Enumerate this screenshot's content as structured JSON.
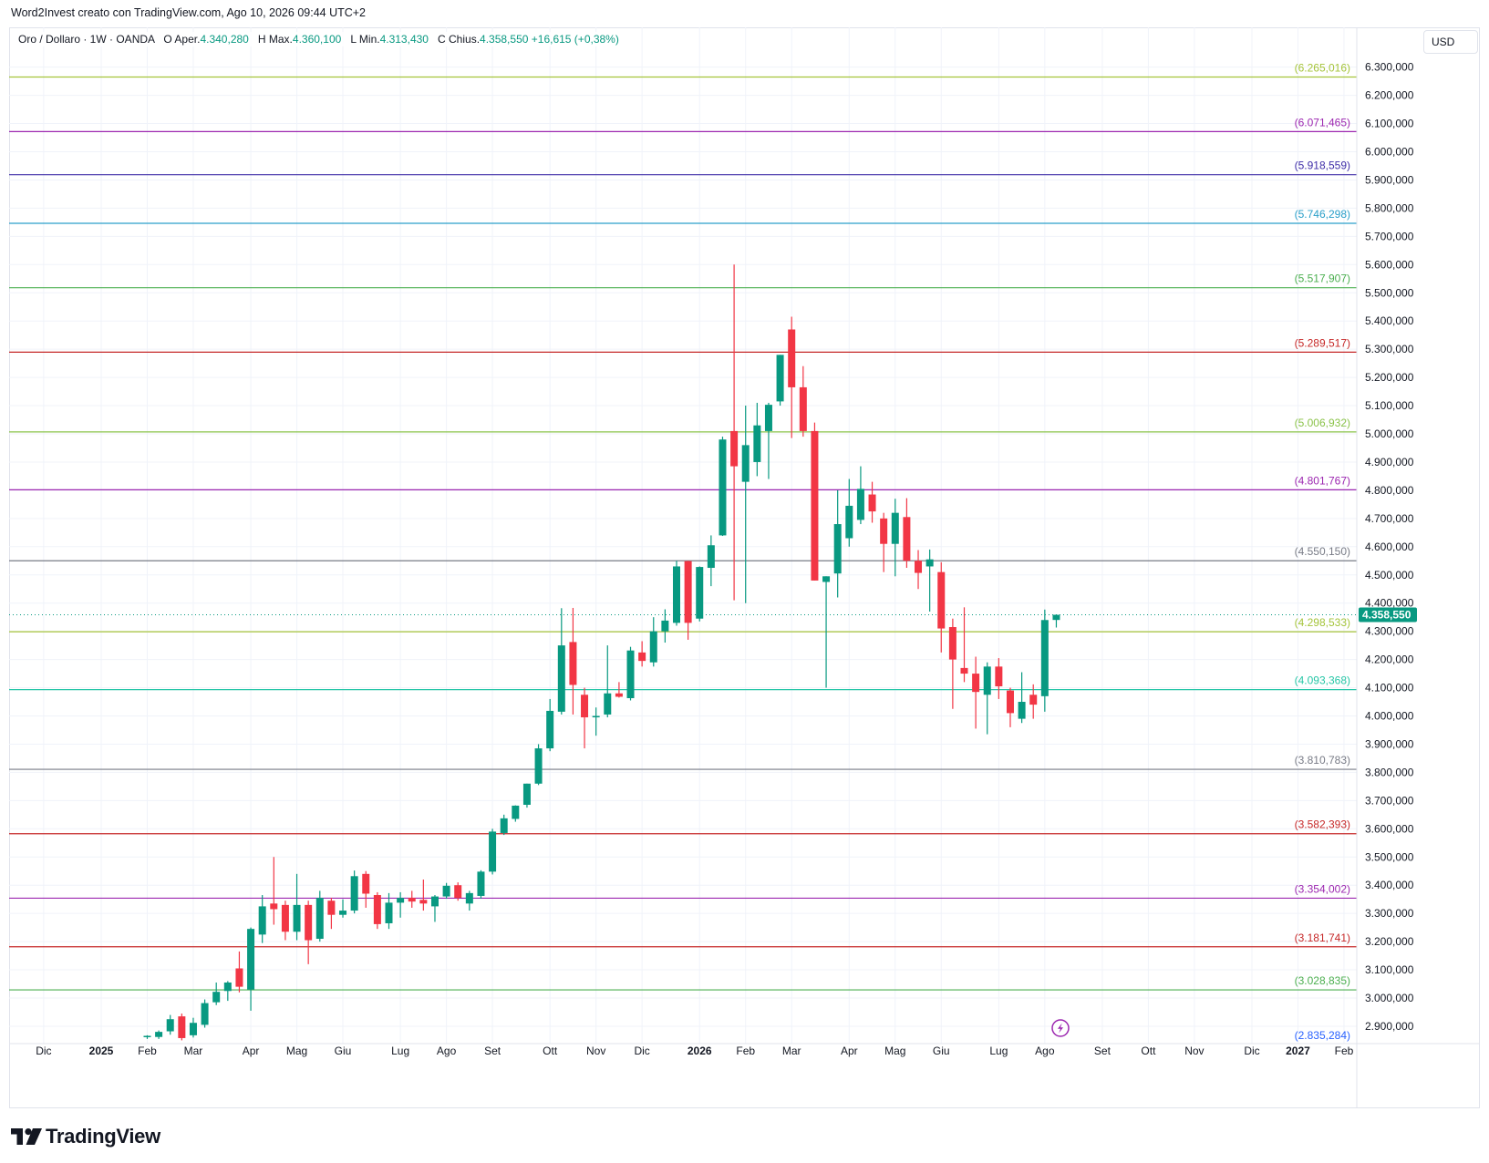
{
  "header": {
    "credit": "Word2Invest creato con TradingView.com, Ago 10, 2026 09:44 UTC+2"
  },
  "legend": {
    "symbol": "Oro / Dollaro · 1W · OANDA",
    "open_label": "O",
    "open_text": "Aper.",
    "open_value": "4.340,280",
    "high_label": "H",
    "high_text": "Max.",
    "high_value": "4.360,100",
    "low_label": "L",
    "low_text": "Min.",
    "low_value": "4.313,430",
    "close_label": "C",
    "close_text": "Chius.",
    "close_value": "4.358,550",
    "change": "+16,615 (+0,38%)"
  },
  "currency_button": {
    "label": "USD"
  },
  "price_badge": {
    "value": "4.358,550",
    "color": "#089981"
  },
  "footer": {
    "brand": "TradingView"
  },
  "colors": {
    "up": "#089981",
    "down": "#f23645",
    "grid": "#f0f3fa",
    "axis_text": "#131722"
  },
  "chart_data": {
    "type": "candlestick",
    "title": "Oro / Dollaro · 1W · OANDA",
    "ylim": [
      2850,
      6330
    ],
    "y_ticks": [
      {
        "value": 2900,
        "label": "2.900,000"
      },
      {
        "value": 3000,
        "label": "3.000,000"
      },
      {
        "value": 3100,
        "label": "3.100,000"
      },
      {
        "value": 3200,
        "label": "3.200,000"
      },
      {
        "value": 3300,
        "label": "3.300,000"
      },
      {
        "value": 3400,
        "label": "3.400,000"
      },
      {
        "value": 3500,
        "label": "3.500,000"
      },
      {
        "value": 3600,
        "label": "3.600,000"
      },
      {
        "value": 3700,
        "label": "3.700,000"
      },
      {
        "value": 3800,
        "label": "3.800,000"
      },
      {
        "value": 3900,
        "label": "3.900,000"
      },
      {
        "value": 4000,
        "label": "4.000,000"
      },
      {
        "value": 4100,
        "label": "4.100,000"
      },
      {
        "value": 4200,
        "label": "4.200,000"
      },
      {
        "value": 4300,
        "label": "4.300,000"
      },
      {
        "value": 4400,
        "label": "4.400,000"
      },
      {
        "value": 4500,
        "label": "4.500,000"
      },
      {
        "value": 4600,
        "label": "4.600,000"
      },
      {
        "value": 4700,
        "label": "4.700,000"
      },
      {
        "value": 4800,
        "label": "4.800,000"
      },
      {
        "value": 4900,
        "label": "4.900,000"
      },
      {
        "value": 5000,
        "label": "5.000,000"
      },
      {
        "value": 5100,
        "label": "5.100,000"
      },
      {
        "value": 5200,
        "label": "5.200,000"
      },
      {
        "value": 5300,
        "label": "5.300,000"
      },
      {
        "value": 5400,
        "label": "5.400,000"
      },
      {
        "value": 5500,
        "label": "5.500,000"
      },
      {
        "value": 5600,
        "label": "5.600,000"
      },
      {
        "value": 5700,
        "label": "5.700,000"
      },
      {
        "value": 5800,
        "label": "5.800,000"
      },
      {
        "value": 5900,
        "label": "5.900,000"
      },
      {
        "value": 6000,
        "label": "6.000,000"
      },
      {
        "value": 6100,
        "label": "6.100,000"
      },
      {
        "value": 6200,
        "label": "6.200,000"
      },
      {
        "value": 6300,
        "label": "6.300,000"
      }
    ],
    "x_ticks": [
      {
        "label": "Dic",
        "week": -5,
        "bold": false
      },
      {
        "label": "2025",
        "week": 0,
        "bold": true
      },
      {
        "label": "Feb",
        "week": 4,
        "bold": false
      },
      {
        "label": "Mar",
        "week": 8,
        "bold": false
      },
      {
        "label": "Apr",
        "week": 13,
        "bold": false
      },
      {
        "label": "Mag",
        "week": 17,
        "bold": false
      },
      {
        "label": "Giu",
        "week": 21,
        "bold": false
      },
      {
        "label": "Lug",
        "week": 26,
        "bold": false
      },
      {
        "label": "Ago",
        "week": 30,
        "bold": false
      },
      {
        "label": "Set",
        "week": 34,
        "bold": false
      },
      {
        "label": "Ott",
        "week": 39,
        "bold": false
      },
      {
        "label": "Nov",
        "week": 43,
        "bold": false
      },
      {
        "label": "Dic",
        "week": 47,
        "bold": false
      },
      {
        "label": "2026",
        "week": 52,
        "bold": true
      },
      {
        "label": "Feb",
        "week": 56,
        "bold": false
      },
      {
        "label": "Mar",
        "week": 60,
        "bold": false
      },
      {
        "label": "Apr",
        "week": 65,
        "bold": false
      },
      {
        "label": "Mag",
        "week": 69,
        "bold": false
      },
      {
        "label": "Giu",
        "week": 73,
        "bold": false
      },
      {
        "label": "Lug",
        "week": 78,
        "bold": false
      },
      {
        "label": "Ago",
        "week": 82,
        "bold": false
      },
      {
        "label": "Set",
        "week": 87,
        "bold": false
      },
      {
        "label": "Ott",
        "week": 91,
        "bold": false
      },
      {
        "label": "Nov",
        "week": 95,
        "bold": false
      },
      {
        "label": "Dic",
        "week": 100,
        "bold": false
      },
      {
        "label": "2027",
        "week": 104,
        "bold": true
      },
      {
        "label": "Feb",
        "week": 108,
        "bold": false
      }
    ],
    "levels": [
      {
        "value": 6265.016,
        "label": "(6.265,016)",
        "color": "#a5c43a"
      },
      {
        "value": 6071.465,
        "label": "(6.071,465)",
        "color": "#9c27b0"
      },
      {
        "value": 5918.559,
        "label": "(5.918,559)",
        "color": "#3f2ea8"
      },
      {
        "value": 5746.298,
        "label": "(5.746,298)",
        "color": "#2a9fc9"
      },
      {
        "value": 5517.907,
        "label": "(5.517,907)",
        "color": "#4caf50"
      },
      {
        "value": 5289.517,
        "label": "(5.289,517)",
        "color": "#c62828"
      },
      {
        "value": 5006.932,
        "label": "(5.006,932)",
        "color": "#8bc34a"
      },
      {
        "value": 4801.767,
        "label": "(4.801,767)",
        "color": "#9c27b0"
      },
      {
        "value": 4550.15,
        "label": "(4.550,150)",
        "color": "#787b86"
      },
      {
        "value": 4298.533,
        "label": "(4.298,533)",
        "color": "#a5c43a"
      },
      {
        "value": 4093.368,
        "label": "(4.093,368)",
        "color": "#26c6a6"
      },
      {
        "value": 3810.783,
        "label": "(3.810,783)",
        "color": "#787b86"
      },
      {
        "value": 3582.393,
        "label": "(3.582,393)",
        "color": "#c62828"
      },
      {
        "value": 3354.002,
        "label": "(3.354,002)",
        "color": "#9c27b0"
      },
      {
        "value": 3181.741,
        "label": "(3.181,741)",
        "color": "#c62828"
      },
      {
        "value": 3028.835,
        "label": "(3.028,835)",
        "color": "#4caf50"
      },
      {
        "value": 2835.284,
        "label": "(2.835,284)",
        "color": "#2962ff"
      }
    ],
    "last_price": 4358.55,
    "candles": [
      {
        "w": 4,
        "o": 2862,
        "h": 2868,
        "l": 2855,
        "c": 2866
      },
      {
        "w": 5,
        "o": 2862,
        "h": 2885,
        "l": 2855,
        "c": 2880
      },
      {
        "w": 6,
        "o": 2882,
        "h": 2940,
        "l": 2870,
        "c": 2925
      },
      {
        "w": 7,
        "o": 2935,
        "h": 2945,
        "l": 2850,
        "c": 2858
      },
      {
        "w": 8,
        "o": 2868,
        "h": 2930,
        "l": 2860,
        "c": 2912
      },
      {
        "w": 9,
        "o": 2905,
        "h": 2995,
        "l": 2895,
        "c": 2982
      },
      {
        "w": 10,
        "o": 2985,
        "h": 3055,
        "l": 2975,
        "c": 3022
      },
      {
        "w": 11,
        "o": 3025,
        "h": 3060,
        "l": 2990,
        "c": 3055
      },
      {
        "w": 12,
        "o": 3105,
        "h": 3165,
        "l": 3020,
        "c": 3040
      },
      {
        "w": 13,
        "o": 3030,
        "h": 3250,
        "l": 2955,
        "c": 3245
      },
      {
        "w": 14,
        "o": 3225,
        "h": 3365,
        "l": 3195,
        "c": 3325
      },
      {
        "w": 15,
        "o": 3335,
        "h": 3500,
        "l": 3260,
        "c": 3315
      },
      {
        "w": 16,
        "o": 3330,
        "h": 3345,
        "l": 3205,
        "c": 3235
      },
      {
        "w": 17,
        "o": 3235,
        "h": 3440,
        "l": 3205,
        "c": 3330
      },
      {
        "w": 18,
        "o": 3330,
        "h": 3345,
        "l": 3120,
        "c": 3205
      },
      {
        "w": 19,
        "o": 3210,
        "h": 3380,
        "l": 3200,
        "c": 3355
      },
      {
        "w": 20,
        "o": 3345,
        "h": 3355,
        "l": 3245,
        "c": 3295
      },
      {
        "w": 21,
        "o": 3295,
        "h": 3350,
        "l": 3285,
        "c": 3310
      },
      {
        "w": 22,
        "o": 3310,
        "h": 3452,
        "l": 3300,
        "c": 3432
      },
      {
        "w": 23,
        "o": 3440,
        "h": 3450,
        "l": 3320,
        "c": 3370
      },
      {
        "w": 24,
        "o": 3365,
        "h": 3375,
        "l": 3245,
        "c": 3262
      },
      {
        "w": 25,
        "o": 3265,
        "h": 3372,
        "l": 3245,
        "c": 3338
      },
      {
        "w": 26,
        "o": 3338,
        "h": 3375,
        "l": 3285,
        "c": 3355
      },
      {
        "w": 27,
        "o": 3355,
        "h": 3380,
        "l": 3320,
        "c": 3342
      },
      {
        "w": 28,
        "o": 3348,
        "h": 3420,
        "l": 3310,
        "c": 3335
      },
      {
        "w": 29,
        "o": 3325,
        "h": 3365,
        "l": 3270,
        "c": 3360
      },
      {
        "w": 30,
        "o": 3360,
        "h": 3408,
        "l": 3352,
        "c": 3398
      },
      {
        "w": 31,
        "o": 3400,
        "h": 3410,
        "l": 3345,
        "c": 3355
      },
      {
        "w": 32,
        "o": 3335,
        "h": 3380,
        "l": 3310,
        "c": 3372
      },
      {
        "w": 33,
        "o": 3362,
        "h": 3453,
        "l": 3352,
        "c": 3448
      },
      {
        "w": 34,
        "o": 3448,
        "h": 3600,
        "l": 3438,
        "c": 3590
      },
      {
        "w": 35,
        "o": 3585,
        "h": 3650,
        "l": 3578,
        "c": 3637
      },
      {
        "w": 36,
        "o": 3635,
        "h": 3683,
        "l": 3625,
        "c": 3682
      },
      {
        "w": 37,
        "o": 3685,
        "h": 3760,
        "l": 3675,
        "c": 3760
      },
      {
        "w": 38,
        "o": 3760,
        "h": 3900,
        "l": 3755,
        "c": 3885
      },
      {
        "w": 39,
        "o": 3885,
        "h": 4060,
        "l": 3875,
        "c": 4018
      },
      {
        "w": 40,
        "o": 4015,
        "h": 4382,
        "l": 4005,
        "c": 4250
      },
      {
        "w": 41,
        "o": 4262,
        "h": 4383,
        "l": 4005,
        "c": 4110
      },
      {
        "w": 42,
        "o": 4075,
        "h": 4100,
        "l": 3885,
        "c": 3995
      },
      {
        "w": 43,
        "o": 3995,
        "h": 4030,
        "l": 3930,
        "c": 4000
      },
      {
        "w": 44,
        "o": 4005,
        "h": 4250,
        "l": 3995,
        "c": 4080
      },
      {
        "w": 45,
        "o": 4080,
        "h": 4120,
        "l": 4065,
        "c": 4068
      },
      {
        "w": 46,
        "o": 4063,
        "h": 4245,
        "l": 4055,
        "c": 4232
      },
      {
        "w": 47,
        "o": 4225,
        "h": 4265,
        "l": 4175,
        "c": 4195
      },
      {
        "w": 48,
        "o": 4190,
        "h": 4350,
        "l": 4175,
        "c": 4300
      },
      {
        "w": 49,
        "o": 4300,
        "h": 4378,
        "l": 4260,
        "c": 4338
      },
      {
        "w": 50,
        "o": 4330,
        "h": 4550,
        "l": 4320,
        "c": 4530
      },
      {
        "w": 51,
        "o": 4549,
        "h": 4550,
        "l": 4270,
        "c": 4330
      },
      {
        "w": 52,
        "o": 4345,
        "h": 4530,
        "l": 4335,
        "c": 4528
      },
      {
        "w": 53,
        "o": 4525,
        "h": 4640,
        "l": 4460,
        "c": 4605
      },
      {
        "w": 54,
        "o": 4640,
        "h": 4990,
        "l": 4638,
        "c": 4980
      },
      {
        "w": 55,
        "o": 5010,
        "h": 5600,
        "l": 4410,
        "c": 4885
      },
      {
        "w": 56,
        "o": 4830,
        "h": 5100,
        "l": 4400,
        "c": 4960
      },
      {
        "w": 57,
        "o": 4900,
        "h": 5110,
        "l": 4850,
        "c": 5030
      },
      {
        "w": 58,
        "o": 5010,
        "h": 5110,
        "l": 4840,
        "c": 5103
      },
      {
        "w": 59,
        "o": 5115,
        "h": 5280,
        "l": 5100,
        "c": 5280
      },
      {
        "w": 60,
        "o": 5370,
        "h": 5415,
        "l": 4985,
        "c": 5165
      },
      {
        "w": 61,
        "o": 5165,
        "h": 5240,
        "l": 4990,
        "c": 5010
      },
      {
        "w": 62,
        "o": 5010,
        "h": 5040,
        "l": 4480,
        "c": 4480
      },
      {
        "w": 63,
        "o": 4475,
        "h": 4495,
        "l": 4100,
        "c": 4495
      },
      {
        "w": 64,
        "o": 4505,
        "h": 4800,
        "l": 4420,
        "c": 4680
      },
      {
        "w": 65,
        "o": 4630,
        "h": 4840,
        "l": 4600,
        "c": 4745
      },
      {
        "w": 66,
        "o": 4695,
        "h": 4885,
        "l": 4680,
        "c": 4805
      },
      {
        "w": 67,
        "o": 4785,
        "h": 4830,
        "l": 4685,
        "c": 4725
      },
      {
        "w": 68,
        "o": 4700,
        "h": 4720,
        "l": 4510,
        "c": 4610
      },
      {
        "w": 69,
        "o": 4610,
        "h": 4770,
        "l": 4495,
        "c": 4720
      },
      {
        "w": 70,
        "o": 4705,
        "h": 4772,
        "l": 4525,
        "c": 4550
      },
      {
        "w": 71,
        "o": 4550,
        "h": 4588,
        "l": 4450,
        "c": 4507
      },
      {
        "w": 72,
        "o": 4530,
        "h": 4590,
        "l": 4370,
        "c": 4555
      },
      {
        "w": 73,
        "o": 4510,
        "h": 4545,
        "l": 4225,
        "c": 4310
      },
      {
        "w": 74,
        "o": 4315,
        "h": 4345,
        "l": 4025,
        "c": 4200
      },
      {
        "w": 75,
        "o": 4170,
        "h": 4385,
        "l": 4120,
        "c": 4150
      },
      {
        "w": 76,
        "o": 4150,
        "h": 4210,
        "l": 3955,
        "c": 4085
      },
      {
        "w": 77,
        "o": 4075,
        "h": 4190,
        "l": 3935,
        "c": 4175
      },
      {
        "w": 78,
        "o": 4175,
        "h": 4205,
        "l": 4060,
        "c": 4105
      },
      {
        "w": 79,
        "o": 4090,
        "h": 4100,
        "l": 3960,
        "c": 4010
      },
      {
        "w": 80,
        "o": 3990,
        "h": 4155,
        "l": 3975,
        "c": 4050
      },
      {
        "w": 81,
        "o": 4075,
        "h": 4112,
        "l": 3990,
        "c": 4040
      },
      {
        "w": 82,
        "o": 4070,
        "h": 4377,
        "l": 4015,
        "c": 4340
      },
      {
        "w": 83,
        "o": 4340.28,
        "h": 4360.1,
        "l": 4313.43,
        "c": 4358.55
      }
    ]
  }
}
